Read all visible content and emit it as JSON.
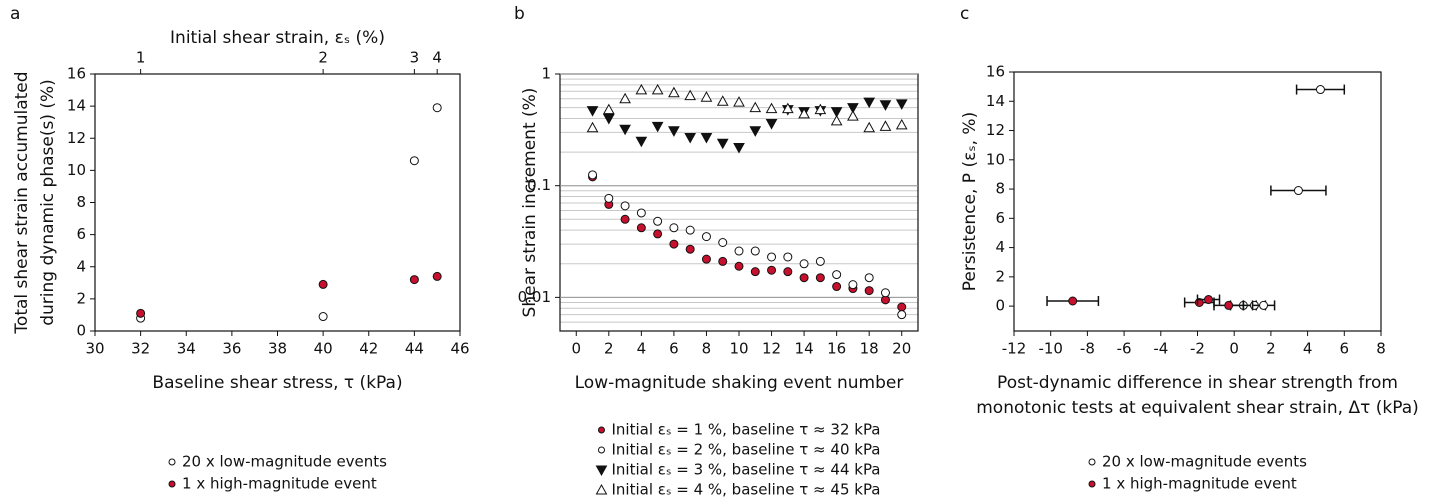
{
  "chart_data": [
    {
      "type": "scatter",
      "label": "a",
      "top_xlabel": "Initial shear strain, εₛ (%)",
      "top_xticks": [
        {
          "value": 32,
          "label": "1"
        },
        {
          "value": 40,
          "label": "2"
        },
        {
          "value": 44,
          "label": "3"
        },
        {
          "value": 45,
          "label": "4"
        }
      ],
      "xlabel": [
        "Baseline shear stress, τ (kPa)"
      ],
      "ylabel": [
        "Total shear strain accumulated",
        "during dynamic phase(s) (%)"
      ],
      "xlim": [
        30,
        46
      ],
      "xticks": [
        30,
        32,
        34,
        36,
        38,
        40,
        42,
        44,
        46
      ],
      "ylim": [
        0,
        16
      ],
      "yticks": [
        0,
        2,
        4,
        6,
        8,
        10,
        12,
        14,
        16
      ],
      "legend": "below",
      "series": [
        {
          "name": "20 x low-magnitude events",
          "color": "#ffffff",
          "marker": "circle",
          "x": [
            32,
            40,
            44,
            45
          ],
          "y": [
            0.8,
            0.9,
            10.6,
            13.9
          ]
        },
        {
          "name": "1 x high-magnitude event",
          "color": "#c8102e",
          "marker": "circle",
          "x": [
            32,
            40,
            44,
            45
          ],
          "y": [
            1.1,
            2.9,
            3.2,
            3.4
          ]
        }
      ]
    },
    {
      "type": "scatter",
      "label": "b",
      "xlabel": [
        "Low-magnitude shaking event number"
      ],
      "ylabel": [
        "Shear strain increment (%)"
      ],
      "xlim": [
        -1,
        21
      ],
      "xticks": [
        0,
        2,
        4,
        6,
        8,
        10,
        12,
        14,
        16,
        18,
        20
      ],
      "ylim": [
        0.005,
        1
      ],
      "yticks": [
        0.01,
        0.1,
        1
      ],
      "ylog": true,
      "grid": true,
      "legend": "below",
      "series": [
        {
          "name": "Initial εₛ = 1 %, baseline τ ≈ 32 kPa",
          "color": "#c8102e",
          "marker": "circle",
          "x": [
            1,
            2,
            3,
            4,
            5,
            6,
            7,
            8,
            9,
            10,
            11,
            12,
            13,
            14,
            15,
            16,
            17,
            18,
            19,
            20
          ],
          "y": [
            0.12,
            0.068,
            0.05,
            0.042,
            0.037,
            0.03,
            0.027,
            0.022,
            0.021,
            0.019,
            0.017,
            0.0175,
            0.017,
            0.015,
            0.015,
            0.0125,
            0.012,
            0.0115,
            0.0095,
            0.0082
          ]
        },
        {
          "name": "Initial εₛ = 2 %, baseline τ ≈ 40 kPa",
          "color": "#ffffff",
          "marker": "circle",
          "x": [
            1,
            2,
            3,
            4,
            5,
            6,
            7,
            8,
            9,
            10,
            11,
            12,
            13,
            14,
            15,
            16,
            17,
            18,
            19,
            20
          ],
          "y": [
            0.125,
            0.077,
            0.066,
            0.057,
            0.048,
            0.042,
            0.04,
            0.035,
            0.031,
            0.026,
            0.026,
            0.023,
            0.023,
            0.02,
            0.021,
            0.016,
            0.013,
            0.015,
            0.011,
            0.007
          ]
        },
        {
          "name": "Initial εₛ = 3 %, baseline τ ≈ 44 kPa",
          "color": "#111111",
          "marker": "triangle-down",
          "x": [
            1,
            2,
            3,
            4,
            5,
            6,
            7,
            8,
            9,
            10,
            11,
            12,
            13,
            14,
            15,
            16,
            17,
            18,
            19,
            20
          ],
          "y": [
            0.47,
            0.4,
            0.32,
            0.25,
            0.34,
            0.31,
            0.27,
            0.27,
            0.24,
            0.22,
            0.31,
            0.36,
            0.48,
            0.46,
            0.47,
            0.46,
            0.5,
            0.56,
            0.53,
            0.54
          ]
        },
        {
          "name": "Initial εₛ = 4 %, baseline τ ≈ 45 kPa",
          "color": "#ffffff",
          "marker": "triangle-up",
          "x": [
            1,
            2,
            3,
            4,
            5,
            6,
            7,
            8,
            9,
            10,
            11,
            12,
            13,
            14,
            15,
            16,
            17,
            18,
            19,
            20
          ],
          "y": [
            0.33,
            0.48,
            0.6,
            0.72,
            0.72,
            0.68,
            0.64,
            0.62,
            0.57,
            0.56,
            0.5,
            0.49,
            0.49,
            0.44,
            0.48,
            0.38,
            0.42,
            0.33,
            0.34,
            0.35
          ]
        }
      ]
    },
    {
      "type": "scatter",
      "label": "c",
      "xlabel": [
        "Post-dynamic difference in shear strength from",
        "monotonic tests at equivalent shear strain, Δτ (kPa)"
      ],
      "ylabel": [
        "Persistence, P (εₛ, %)"
      ],
      "xlim": [
        -12,
        8
      ],
      "xticks": [
        -12,
        -10,
        -8,
        -6,
        -4,
        -2,
        0,
        2,
        4,
        6,
        8
      ],
      "ylim": [
        -1.7,
        16
      ],
      "yticks": [
        0,
        2,
        4,
        6,
        8,
        10,
        12,
        14,
        16
      ],
      "legend": "below",
      "series": [
        {
          "name": "20 x low-magnitude events",
          "color": "#ffffff",
          "marker": "circle",
          "x": [
            0.5,
            1.1,
            1.6,
            3.5,
            4.7
          ],
          "xerr": [
            0.7,
            0.6,
            0.6,
            1.5,
            1.3
          ],
          "y": [
            0.05,
            0.05,
            0.05,
            7.9,
            14.8
          ]
        },
        {
          "name": "1 x high-magnitude event",
          "color": "#c8102e",
          "marker": "circle",
          "x": [
            -8.8,
            -1.9,
            -1.4,
            -0.3
          ],
          "xerr": [
            1.4,
            0.8,
            0.6,
            0.8
          ],
          "y": [
            0.35,
            0.25,
            0.45,
            0.05
          ]
        }
      ]
    }
  ]
}
